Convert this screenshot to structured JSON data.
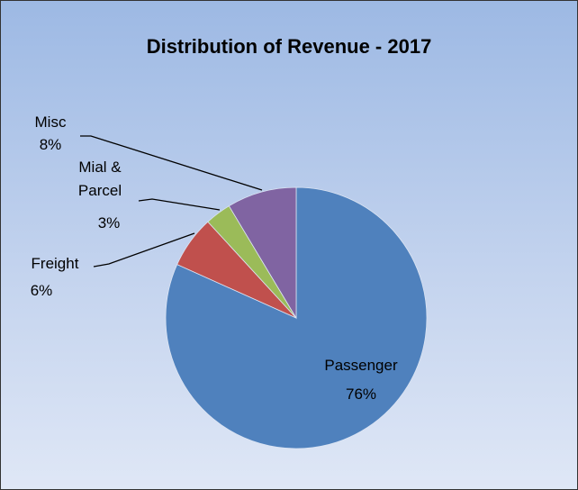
{
  "chart_data": {
    "type": "pie",
    "title": "Distribution of Revenue - 2017",
    "categories": [
      "Passenger",
      "Freight",
      "Mial & Parcel",
      "Misc"
    ],
    "values": [
      76,
      6,
      3,
      8
    ],
    "value_labels": [
      "76%",
      "6%",
      "3%",
      "8%"
    ],
    "colors": [
      "#4f81bd",
      "#c0504d",
      "#9bbb59",
      "#8064a2"
    ]
  }
}
